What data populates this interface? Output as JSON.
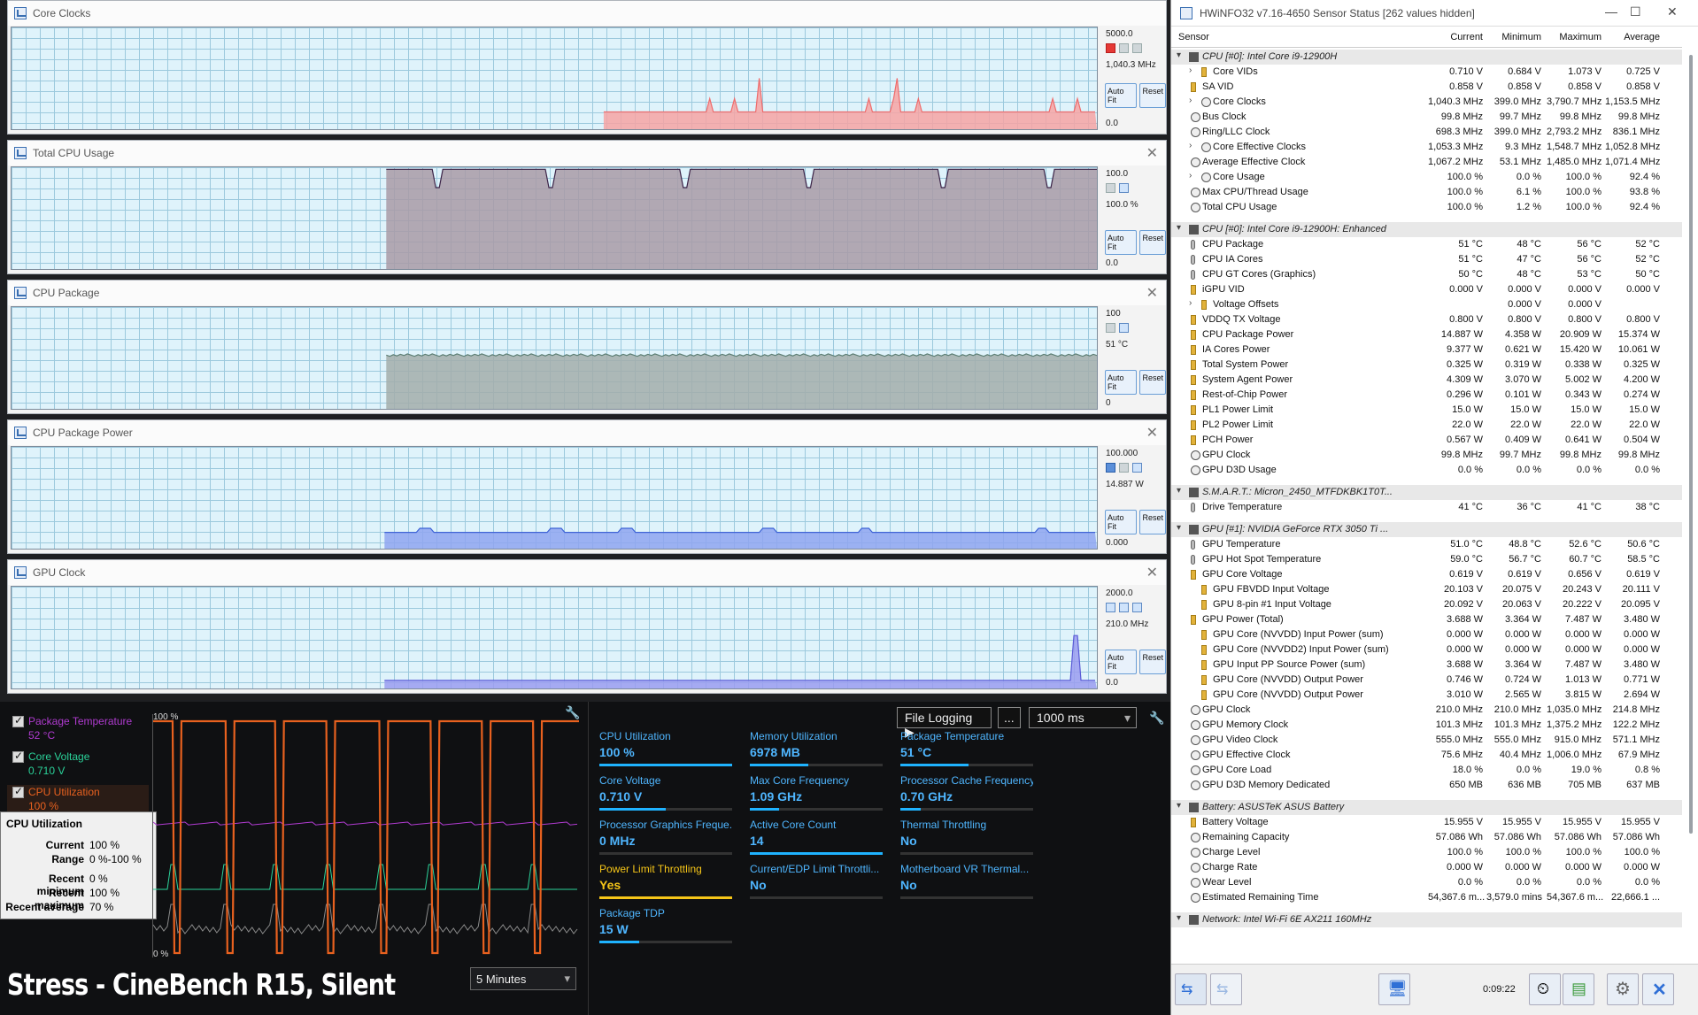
{
  "graphs": [
    {
      "title": "Core Clocks",
      "max": "5000.0",
      "current": "1,040.3 MHz",
      "min": "0.0",
      "color": "#ef6b6b",
      "fill": "#f7a3a3",
      "swatches": [
        "red",
        "gray",
        "gray"
      ]
    },
    {
      "title": "Total CPU Usage",
      "max": "100.0",
      "current": "100.0 %",
      "min": "0.0",
      "color": "#3b2347",
      "fill": "#a99aa6",
      "swatches": [
        "dark",
        "gray",
        "lblue"
      ]
    },
    {
      "title": "CPU Package",
      "max": "100",
      "current": "51 °C",
      "min": "0",
      "color": "#5d7f75",
      "fill": "#a3adaa",
      "swatches": [
        "dark",
        "gray",
        "lblue"
      ]
    },
    {
      "title": "CPU Package Power",
      "max": "100.000",
      "current": "14.887 W",
      "min": "0.000",
      "color": "#3e63d6",
      "fill": "#8fa5f0",
      "swatches": [
        "blue",
        "gray",
        "lblue"
      ]
    },
    {
      "title": "GPU Clock",
      "max": "2000.0",
      "current": "210.0 MHz",
      "min": "0.0",
      "color": "#5a5bd6",
      "fill": "#9b9cf0",
      "swatches": [
        "lblue",
        "lblue",
        "lblue"
      ]
    }
  ],
  "graph_buttons": {
    "autofit": "Auto Fit",
    "reset": "Reset"
  },
  "monitor": {
    "legend": [
      {
        "name": "Package Temperature",
        "value": "52 °C",
        "color": "#b03bd0"
      },
      {
        "name": "Core Voltage",
        "value": "0.710 V",
        "color": "#2bd39a"
      },
      {
        "name": "CPU Utilization",
        "value": "100 %",
        "color": "#e8611f"
      }
    ],
    "tooltip": {
      "title": "CPU Utilization",
      "rows": [
        {
          "k": "Current",
          "v": "100 %"
        },
        {
          "k": "Range",
          "v": "0 %-100 %"
        },
        {
          "k": "Recent minimum",
          "v": "0 %"
        },
        {
          "k": "Recent maximum",
          "v": "100 %"
        },
        {
          "k": "Recent average",
          "v": "70 %"
        }
      ]
    },
    "graph_top": "100 %",
    "graph_bottom": "0 %",
    "period": "5 Minutes",
    "caption": "Stress - CineBench R15, Silent",
    "file_logging": "File Logging ▶",
    "ellipsis": "...",
    "interval": "1000 ms",
    "metrics": [
      {
        "label": "CPU Utilization",
        "value": "100 %",
        "bar": 1.0,
        "warn": false
      },
      {
        "label": "Memory Utilization",
        "value": "6978  MB",
        "bar": 0.44,
        "warn": false
      },
      {
        "label": "Package Temperature",
        "value": "51 °C",
        "bar": 0.51,
        "warn": false
      },
      {
        "label": "Core Voltage",
        "value": "0.710 V",
        "bar": 0.5,
        "warn": false
      },
      {
        "label": "Max Core Frequency",
        "value": "1.09 GHz",
        "bar": 0.22,
        "warn": false
      },
      {
        "label": "Processor Cache Frequency",
        "value": "0.70 GHz",
        "bar": 0.15,
        "warn": false
      },
      {
        "label": "Processor Graphics Freque...",
        "value": "0 MHz",
        "bar": 0.0,
        "warn": false
      },
      {
        "label": "Active Core Count",
        "value": "14",
        "bar": 1.0,
        "warn": false
      },
      {
        "label": "Thermal Throttling",
        "value": "No",
        "bar": 0.0,
        "warn": false
      },
      {
        "label": "Power Limit Throttling",
        "value": "Yes",
        "bar": 1.0,
        "warn": true
      },
      {
        "label": "Current/EDP Limit Throttli...",
        "value": "No",
        "bar": 0.0,
        "warn": false
      },
      {
        "label": "Motherboard VR Thermal...",
        "value": "No",
        "bar": 0.0,
        "warn": false
      },
      {
        "label": "Package TDP",
        "value": "15 W",
        "bar": 0.3,
        "warn": false
      }
    ]
  },
  "hwinfo": {
    "title": "HWiNFO32 v7.16-4650 Sensor Status [262 values hidden]",
    "columns": [
      "Sensor",
      "Current",
      "Minimum",
      "Maximum",
      "Average"
    ],
    "timer": "0:09:22",
    "rows": [
      {
        "t": "g",
        "name": "CPU [#0]: Intel Core i9-12900H"
      },
      {
        "t": "r",
        "ind": 1,
        "exp": true,
        "icon": "volt",
        "name": "Core VIDs",
        "v": [
          "0.710 V",
          "0.684 V",
          "1.073 V",
          "0.725 V"
        ]
      },
      {
        "t": "r",
        "icon": "volt",
        "name": "SA VID",
        "v": [
          "0.858 V",
          "0.858 V",
          "0.858 V",
          "0.858 V"
        ]
      },
      {
        "t": "r",
        "ind": 1,
        "exp": true,
        "icon": "clock",
        "name": "Core Clocks",
        "v": [
          "1,040.3 MHz",
          "399.0 MHz",
          "3,790.7 MHz",
          "1,153.5 MHz"
        ]
      },
      {
        "t": "r",
        "icon": "clock",
        "name": "Bus Clock",
        "v": [
          "99.8 MHz",
          "99.7 MHz",
          "99.8 MHz",
          "99.8 MHz"
        ]
      },
      {
        "t": "r",
        "icon": "clock",
        "name": "Ring/LLC Clock",
        "v": [
          "698.3 MHz",
          "399.0 MHz",
          "2,793.2 MHz",
          "836.1 MHz"
        ]
      },
      {
        "t": "r",
        "ind": 1,
        "exp": true,
        "icon": "clock",
        "name": "Core Effective Clocks",
        "v": [
          "1,053.3 MHz",
          "9.3 MHz",
          "1,548.7 MHz",
          "1,052.8 MHz"
        ]
      },
      {
        "t": "r",
        "icon": "clock",
        "name": "Average Effective Clock",
        "v": [
          "1,067.2 MHz",
          "53.1 MHz",
          "1,485.0 MHz",
          "1,071.4 MHz"
        ]
      },
      {
        "t": "r",
        "ind": 1,
        "exp": true,
        "icon": "clock",
        "name": "Core Usage",
        "v": [
          "100.0 %",
          "0.0 %",
          "100.0 %",
          "92.4 %"
        ]
      },
      {
        "t": "r",
        "icon": "clock",
        "name": "Max CPU/Thread Usage",
        "v": [
          "100.0 %",
          "6.1 %",
          "100.0 %",
          "93.8 %"
        ]
      },
      {
        "t": "r",
        "icon": "clock",
        "name": "Total CPU Usage",
        "v": [
          "100.0 %",
          "1.2 %",
          "100.0 %",
          "92.4 %"
        ]
      },
      {
        "t": "s"
      },
      {
        "t": "g",
        "name": "CPU [#0]: Intel Core i9-12900H: Enhanced"
      },
      {
        "t": "r",
        "icon": "therm",
        "name": "CPU Package",
        "v": [
          "51 °C",
          "48 °C",
          "56 °C",
          "52 °C"
        ]
      },
      {
        "t": "r",
        "icon": "therm",
        "name": "CPU IA Cores",
        "v": [
          "51 °C",
          "47 °C",
          "56 °C",
          "52 °C"
        ]
      },
      {
        "t": "r",
        "icon": "therm",
        "name": "CPU GT Cores (Graphics)",
        "v": [
          "50 °C",
          "48 °C",
          "53 °C",
          "50 °C"
        ]
      },
      {
        "t": "r",
        "icon": "volt",
        "name": "iGPU VID",
        "v": [
          "0.000 V",
          "0.000 V",
          "0.000 V",
          "0.000 V"
        ]
      },
      {
        "t": "r",
        "ind": 1,
        "exp": true,
        "icon": "volt",
        "name": "Voltage Offsets",
        "v": [
          "",
          "0.000 V",
          "0.000 V",
          ""
        ]
      },
      {
        "t": "r",
        "icon": "volt",
        "name": "VDDQ TX Voltage",
        "v": [
          "0.800 V",
          "0.800 V",
          "0.800 V",
          "0.800 V"
        ]
      },
      {
        "t": "r",
        "icon": "volt",
        "name": "CPU Package Power",
        "v": [
          "14.887 W",
          "4.358 W",
          "20.909 W",
          "15.374 W"
        ]
      },
      {
        "t": "r",
        "icon": "volt",
        "name": "IA Cores Power",
        "v": [
          "9.377 W",
          "0.621 W",
          "15.420 W",
          "10.061 W"
        ]
      },
      {
        "t": "r",
        "icon": "volt",
        "name": "Total System Power",
        "v": [
          "0.325 W",
          "0.319 W",
          "0.338 W",
          "0.325 W"
        ]
      },
      {
        "t": "r",
        "icon": "volt",
        "name": "System Agent Power",
        "v": [
          "4.309 W",
          "3.070 W",
          "5.002 W",
          "4.200 W"
        ]
      },
      {
        "t": "r",
        "icon": "volt",
        "name": "Rest-of-Chip Power",
        "v": [
          "0.296 W",
          "0.101 W",
          "0.343 W",
          "0.274 W"
        ]
      },
      {
        "t": "r",
        "icon": "volt",
        "name": "PL1 Power Limit",
        "v": [
          "15.0 W",
          "15.0 W",
          "15.0 W",
          "15.0 W"
        ]
      },
      {
        "t": "r",
        "icon": "volt",
        "name": "PL2 Power Limit",
        "v": [
          "22.0 W",
          "22.0 W",
          "22.0 W",
          "22.0 W"
        ]
      },
      {
        "t": "r",
        "icon": "volt",
        "name": "PCH Power",
        "v": [
          "0.567 W",
          "0.409 W",
          "0.641 W",
          "0.504 W"
        ]
      },
      {
        "t": "r",
        "icon": "clock",
        "name": "GPU Clock",
        "v": [
          "99.8 MHz",
          "99.7 MHz",
          "99.8 MHz",
          "99.8 MHz"
        ]
      },
      {
        "t": "r",
        "icon": "clock",
        "name": "GPU D3D Usage",
        "v": [
          "0.0 %",
          "0.0 %",
          "0.0 %",
          "0.0 %"
        ]
      },
      {
        "t": "s"
      },
      {
        "t": "g",
        "name": "S.M.A.R.T.: Micron_2450_MTFDKBK1T0T..."
      },
      {
        "t": "r",
        "icon": "therm",
        "name": "Drive Temperature",
        "v": [
          "41 °C",
          "36 °C",
          "41 °C",
          "38 °C"
        ]
      },
      {
        "t": "s"
      },
      {
        "t": "g",
        "name": "GPU [#1]: NVIDIA GeForce RTX 3050 Ti ..."
      },
      {
        "t": "r",
        "icon": "therm",
        "name": "GPU Temperature",
        "v": [
          "51.0 °C",
          "48.8 °C",
          "52.6 °C",
          "50.6 °C"
        ]
      },
      {
        "t": "r",
        "icon": "therm",
        "name": "GPU Hot Spot Temperature",
        "v": [
          "59.0 °C",
          "56.7 °C",
          "60.7 °C",
          "58.5 °C"
        ]
      },
      {
        "t": "r",
        "icon": "volt",
        "name": "GPU Core Voltage",
        "v": [
          "0.619 V",
          "0.619 V",
          "0.656 V",
          "0.619 V"
        ]
      },
      {
        "t": "r",
        "ind": 1,
        "icon": "volt",
        "name": "GPU FBVDD Input Voltage",
        "v": [
          "20.103 V",
          "20.075 V",
          "20.243 V",
          "20.111 V"
        ]
      },
      {
        "t": "r",
        "ind": 1,
        "icon": "volt",
        "name": "GPU 8-pin #1 Input Voltage",
        "v": [
          "20.092 V",
          "20.063 V",
          "20.222 V",
          "20.095 V"
        ]
      },
      {
        "t": "r",
        "icon": "volt",
        "name": "GPU Power (Total)",
        "v": [
          "3.688 W",
          "3.364 W",
          "7.487 W",
          "3.480 W"
        ]
      },
      {
        "t": "r",
        "ind": 1,
        "icon": "volt",
        "name": "GPU Core (NVVDD) Input Power (sum)",
        "v": [
          "0.000 W",
          "0.000 W",
          "0.000 W",
          "0.000 W"
        ]
      },
      {
        "t": "r",
        "ind": 1,
        "icon": "volt",
        "name": "GPU Core (NVVDD2) Input Power (sum)",
        "v": [
          "0.000 W",
          "0.000 W",
          "0.000 W",
          "0.000 W"
        ]
      },
      {
        "t": "r",
        "ind": 1,
        "icon": "volt",
        "name": "GPU Input PP Source Power (sum)",
        "v": [
          "3.688 W",
          "3.364 W",
          "7.487 W",
          "3.480 W"
        ]
      },
      {
        "t": "r",
        "ind": 1,
        "icon": "volt",
        "name": "GPU Core (NVVDD) Output Power",
        "v": [
          "0.746 W",
          "0.724 W",
          "1.013 W",
          "0.771 W"
        ]
      },
      {
        "t": "r",
        "ind": 1,
        "icon": "volt",
        "name": "GPU Core (NVVDD) Output Power",
        "v": [
          "3.010 W",
          "2.565 W",
          "3.815 W",
          "2.694 W"
        ]
      },
      {
        "t": "r",
        "icon": "clock",
        "name": "GPU Clock",
        "v": [
          "210.0 MHz",
          "210.0 MHz",
          "1,035.0 MHz",
          "214.8 MHz"
        ]
      },
      {
        "t": "r",
        "icon": "clock",
        "name": "GPU Memory Clock",
        "v": [
          "101.3 MHz",
          "101.3 MHz",
          "1,375.2 MHz",
          "122.2 MHz"
        ]
      },
      {
        "t": "r",
        "icon": "clock",
        "name": "GPU Video Clock",
        "v": [
          "555.0 MHz",
          "555.0 MHz",
          "915.0 MHz",
          "571.1 MHz"
        ]
      },
      {
        "t": "r",
        "icon": "clock",
        "name": "GPU Effective Clock",
        "v": [
          "75.6 MHz",
          "40.4 MHz",
          "1,006.0 MHz",
          "67.9 MHz"
        ]
      },
      {
        "t": "r",
        "icon": "clock",
        "name": "GPU Core Load",
        "v": [
          "18.0 %",
          "0.0 %",
          "19.0 %",
          "0.8 %"
        ]
      },
      {
        "t": "r",
        "icon": "clock",
        "name": "GPU D3D Memory Dedicated",
        "v": [
          "650 MB",
          "636 MB",
          "705 MB",
          "637 MB"
        ]
      },
      {
        "t": "s"
      },
      {
        "t": "g",
        "name": "Battery: ASUSTeK ASUS Battery"
      },
      {
        "t": "r",
        "icon": "volt",
        "name": "Battery Voltage",
        "v": [
          "15.955 V",
          "15.955 V",
          "15.955 V",
          "15.955 V"
        ]
      },
      {
        "t": "r",
        "icon": "clock",
        "name": "Remaining Capacity",
        "v": [
          "57.086 Wh",
          "57.086 Wh",
          "57.086 Wh",
          "57.086 Wh"
        ]
      },
      {
        "t": "r",
        "icon": "clock",
        "name": "Charge Level",
        "v": [
          "100.0 %",
          "100.0 %",
          "100.0 %",
          "100.0 %"
        ]
      },
      {
        "t": "r",
        "icon": "clock",
        "name": "Charge Rate",
        "v": [
          "0.000 W",
          "0.000 W",
          "0.000 W",
          "0.000 W"
        ]
      },
      {
        "t": "r",
        "icon": "clock",
        "name": "Wear Level",
        "v": [
          "0.0 %",
          "0.0 %",
          "0.0 %",
          "0.0 %"
        ]
      },
      {
        "t": "r",
        "icon": "clock",
        "name": "Estimated Remaining Time",
        "v": [
          "54,367.6 m...",
          "3,579.0 mins",
          "54,367.6 m...",
          "22,666.1 ..."
        ]
      },
      {
        "t": "s"
      },
      {
        "t": "g",
        "name": "Network: Intel Wi-Fi 6E AX211 160MHz"
      }
    ]
  }
}
